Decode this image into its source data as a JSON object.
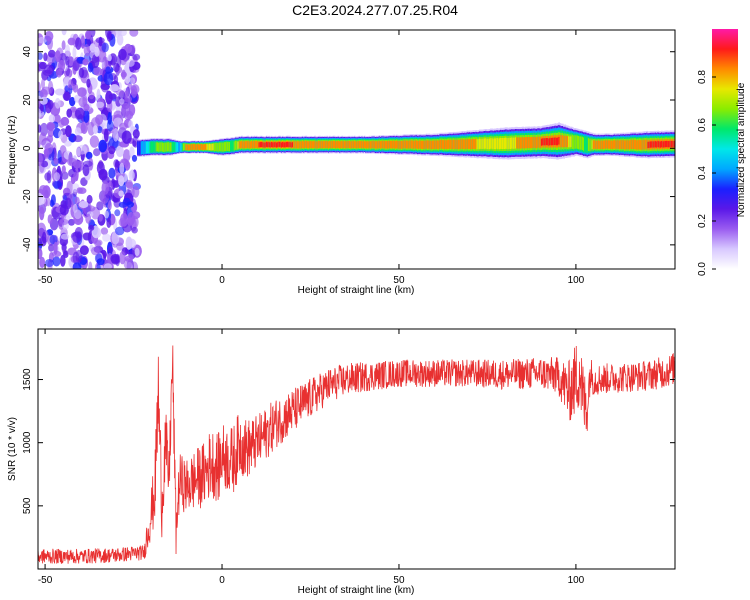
{
  "figure": {
    "title": "C2E3.2024.277.07.25.R04"
  },
  "colors": {
    "axis": "#000000",
    "snr_line": "#e83030",
    "colormap": [
      "#ffffff",
      "#d8c8ff",
      "#9a5cf0",
      "#5a18e8",
      "#1a20ff",
      "#00a8ff",
      "#00e8e8",
      "#00e86a",
      "#8aec00",
      "#e8e800",
      "#ff8a00",
      "#ff1a1a",
      "#ff1aa8"
    ]
  },
  "chart_data": [
    {
      "type": "heatmap",
      "title": "",
      "xlabel": "Height of straight line (km)",
      "ylabel": "Frequency (Hz)",
      "xlim": [
        -52,
        128
      ],
      "ylim": [
        -50,
        49
      ],
      "xticks": [
        -50,
        0,
        50,
        100
      ],
      "yticks": [
        -40,
        -20,
        0,
        20,
        40
      ],
      "colorbar": {
        "label": "Normalized spectral amplitude",
        "range": [
          0,
          1
        ],
        "ticks": [
          0.0,
          0.2,
          0.4,
          0.6,
          0.8
        ]
      },
      "description_regions": [
        {
          "x_range": [
            -52,
            -24
          ],
          "kind": "broadband noise"
        },
        {
          "x_range": [
            -24,
            128
          ],
          "kind": "narrow tone near 0-2 Hz"
        }
      ],
      "tone_profile": {
        "x": [
          -24,
          -20,
          -15,
          -12,
          -10,
          -5,
          0,
          3,
          5,
          10,
          20,
          40,
          60,
          80,
          90,
          95,
          100,
          103,
          105,
          110,
          120,
          128
        ],
        "freq_hz": [
          0,
          0.5,
          0.5,
          0.5,
          0.5,
          0.5,
          0.5,
          1,
          1.5,
          1.5,
          1.5,
          1.5,
          1.5,
          2,
          2.5,
          3,
          2.5,
          1.5,
          1.5,
          1.5,
          1.5,
          1.8
        ],
        "width_hz": [
          3,
          3,
          3,
          2,
          2,
          2,
          3,
          3,
          3,
          3,
          3,
          3,
          4,
          6,
          6,
          7,
          5,
          5,
          4,
          4,
          5,
          5
        ],
        "amplitude": [
          0.3,
          0.6,
          0.7,
          0.4,
          0.9,
          0.8,
          0.7,
          0.6,
          0.85,
          0.9,
          0.9,
          0.88,
          0.85,
          0.75,
          0.9,
          0.9,
          0.7,
          0.6,
          0.85,
          0.88,
          0.9,
          0.9
        ]
      }
    },
    {
      "type": "line",
      "title": "",
      "xlabel": "Height of straight line (km)",
      "ylabel": "SNR (10 * v/v)",
      "xlim": [
        -52,
        128
      ],
      "ylim": [
        0,
        1900
      ],
      "xticks": [
        -50,
        0,
        50,
        100
      ],
      "yticks": [
        500,
        1000,
        1500
      ],
      "series": [
        {
          "color": "#e83030",
          "x": [
            -52,
            -40,
            -30,
            -22,
            -21,
            -19,
            -18,
            -17,
            -16,
            -15,
            -14,
            -13,
            -12,
            -10,
            -8,
            -5,
            -3,
            -1,
            0,
            3,
            5,
            7,
            10,
            15,
            20,
            25,
            30,
            35,
            40,
            50,
            60,
            70,
            80,
            90,
            95,
            98,
            100,
            101,
            102,
            103,
            104,
            105,
            110,
            115,
            120,
            125,
            128
          ],
          "y": [
            100,
            100,
            110,
            130,
            300,
            600,
            1400,
            500,
            1000,
            700,
            1650,
            300,
            700,
            650,
            700,
            750,
            850,
            800,
            900,
            850,
            1000,
            950,
            1000,
            1150,
            1250,
            1350,
            1450,
            1500,
            1520,
            1550,
            1550,
            1550,
            1540,
            1550,
            1530,
            1400,
            1500,
            1600,
            1350,
            1250,
            1550,
            1500,
            1510,
            1520,
            1530,
            1560,
            1590
          ],
          "noise": [
            60,
            60,
            60,
            60,
            160,
            260,
            400,
            250,
            300,
            250,
            300,
            200,
            220,
            220,
            240,
            260,
            280,
            280,
            260,
            280,
            260,
            240,
            220,
            200,
            180,
            160,
            140,
            130,
            120,
            110,
            110,
            110,
            120,
            130,
            150,
            250,
            300,
            350,
            300,
            250,
            150,
            130,
            120,
            120,
            120,
            130,
            130
          ]
        }
      ]
    }
  ]
}
